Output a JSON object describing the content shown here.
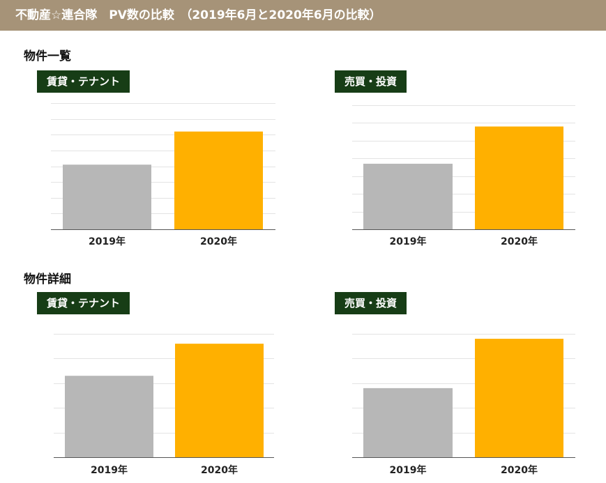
{
  "header": {
    "title": "不動産☆連合隊　PV数の比較　（2019年6月と2020年6月の比較）"
  },
  "sections": [
    {
      "title": "物件一覧"
    },
    {
      "title": "物件詳細"
    }
  ],
  "badges": [
    "賃貸・テナント",
    "売買・投資",
    "賃貸・テナント",
    "売買・投資"
  ],
  "colors": {
    "bar_2019": "#b7b7b7",
    "bar_2020": "#ffb000",
    "badge": "#173d16",
    "header": "#a69378",
    "grid": "#e3e3e3",
    "axis": "#555555"
  },
  "chart_data": [
    {
      "type": "bar",
      "section": "物件一覧",
      "badge": "賃貸・テナント",
      "categories": [
        "2019年",
        "2020年"
      ],
      "values": [
        4.1,
        6.2
      ],
      "ylim": [
        0,
        8
      ],
      "grid": true
    },
    {
      "type": "bar",
      "section": "物件一覧",
      "badge": "売買・投資",
      "categories": [
        "2019年",
        "2020年"
      ],
      "values": [
        3.7,
        5.8
      ],
      "ylim": [
        0,
        7
      ],
      "grid": true
    },
    {
      "type": "bar",
      "section": "物件詳細",
      "badge": "賃貸・テナント",
      "categories": [
        "2019年",
        "2020年"
      ],
      "values": [
        3.3,
        4.6
      ],
      "ylim": [
        0,
        5
      ],
      "grid": true
    },
    {
      "type": "bar",
      "section": "物件詳細",
      "badge": "売買・投資",
      "categories": [
        "2019年",
        "2020年"
      ],
      "values": [
        2.8,
        4.8
      ],
      "ylim": [
        0,
        5
      ],
      "grid": true
    }
  ]
}
